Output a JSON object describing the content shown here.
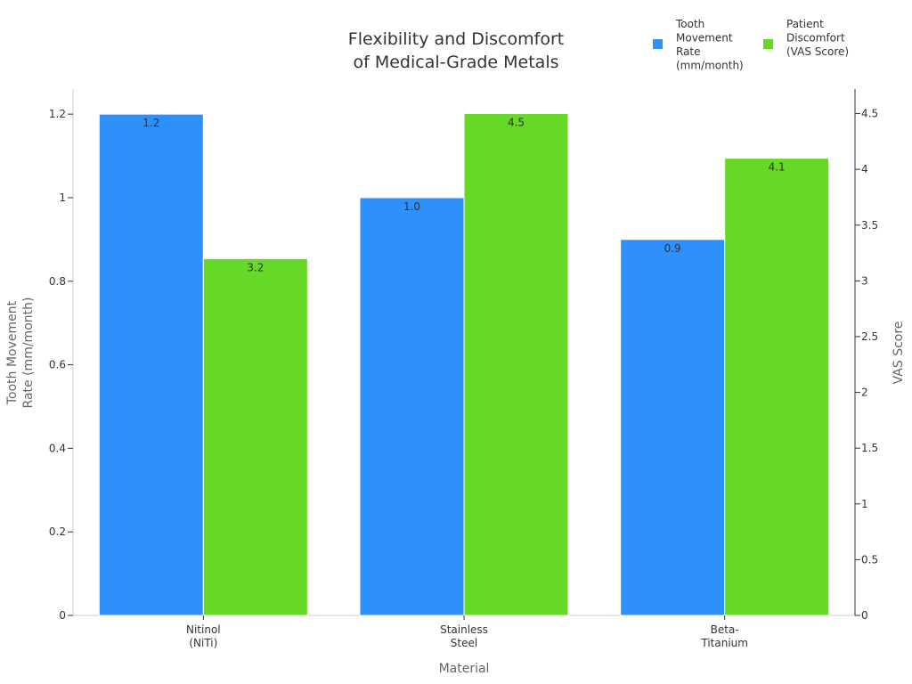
{
  "chart_data": {
    "type": "bar",
    "title": [
      "Flexibility and Discomfort",
      "of Medical-Grade Metals"
    ],
    "xlabel": "Material",
    "ylabel_left": [
      "Tooth Movement",
      "Rate (mm/month)"
    ],
    "ylabel_right": "VAS Score",
    "categories": [
      [
        "Nitinol",
        "(NiTi)"
      ],
      [
        "Stainless",
        "Steel"
      ],
      [
        "Beta-",
        "Titanium"
      ]
    ],
    "series": [
      {
        "name": [
          "Tooth",
          "Movement",
          "Rate",
          "(mm/month)"
        ],
        "axis": "left",
        "color": "#2e90fa",
        "values": [
          1.2,
          1.0,
          0.9
        ],
        "labels": [
          "1.2",
          "1.0",
          "0.9"
        ]
      },
      {
        "name": [
          "Patient",
          "Discomfort",
          "(VAS Score)"
        ],
        "axis": "right",
        "color": "#66d926",
        "values": [
          3.2,
          4.5,
          4.1
        ],
        "labels": [
          "3.2",
          "4.5",
          "4.1"
        ]
      }
    ],
    "ylim_left": [
      0,
      1.26
    ],
    "ylim_right": [
      0,
      4.72
    ],
    "yticks_left": [
      0,
      0.2,
      0.4,
      0.6,
      0.8,
      1,
      1.2
    ],
    "ytick_labels_left": [
      "0",
      "0.2",
      "0.4",
      "0.6",
      "0.8",
      "1",
      "1.2"
    ],
    "yticks_right": [
      0,
      0.5,
      1,
      1.5,
      2,
      2.5,
      3,
      3.5,
      4,
      4.5
    ],
    "ytick_labels_right": [
      "0",
      "0.5",
      "1",
      "1.5",
      "2",
      "2.5",
      "3",
      "3.5",
      "4",
      "4.5"
    ],
    "grid": false,
    "legend_position": "top-right"
  }
}
